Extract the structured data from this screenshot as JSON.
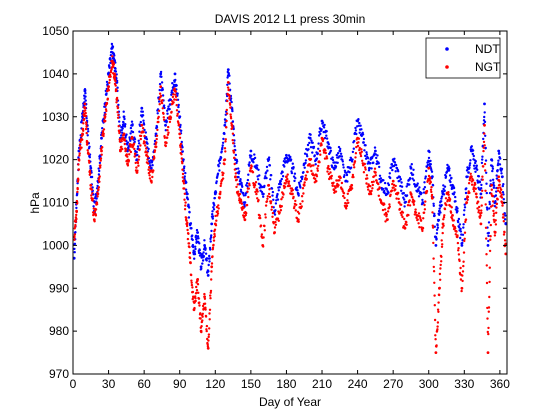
{
  "chart_data": {
    "type": "scatter",
    "title": "DAVIS 2012 L1 press 30min",
    "xlabel": "Day of Year",
    "ylabel": "hPa",
    "xlim": [
      0,
      366
    ],
    "ylim": [
      970,
      1050
    ],
    "xticks": [
      0,
      30,
      60,
      90,
      120,
      150,
      180,
      210,
      240,
      270,
      300,
      330,
      360
    ],
    "yticks": [
      970,
      980,
      990,
      1000,
      1010,
      1020,
      1030,
      1040,
      1050
    ],
    "grid": false,
    "legend_position": "top-right",
    "series": [
      {
        "name": "NDT",
        "color": "#0000ff",
        "marker": "dot",
        "x": [
          1,
          3,
          5,
          8,
          10,
          12,
          15,
          18,
          21,
          24,
          27,
          30,
          33,
          35,
          37,
          40,
          43,
          46,
          50,
          54,
          58,
          62,
          66,
          70,
          74,
          78,
          82,
          86,
          90,
          93,
          96,
          99,
          102,
          105,
          108,
          111,
          114,
          117,
          120,
          124,
          128,
          131,
          134,
          137,
          141,
          145,
          150,
          155,
          160,
          165,
          170,
          175,
          180,
          185,
          190,
          195,
          200,
          205,
          210,
          215,
          220,
          225,
          230,
          235,
          240,
          245,
          250,
          255,
          260,
          265,
          270,
          275,
          280,
          285,
          290,
          295,
          300,
          303,
          306,
          309,
          312,
          316,
          320,
          324,
          328,
          332,
          336,
          340,
          344,
          347,
          350,
          353,
          356,
          359,
          362,
          365
        ],
        "values": [
          997,
          1010,
          1022,
          1030,
          1036,
          1028,
          1018,
          1008,
          1015,
          1025,
          1033,
          1040,
          1046,
          1043,
          1038,
          1025,
          1030,
          1022,
          1028,
          1020,
          1032,
          1024,
          1018,
          1026,
          1040,
          1028,
          1034,
          1040,
          1030,
          1020,
          1012,
          1005,
          998,
          1003,
          995,
          1000,
          993,
          1005,
          1012,
          1020,
          1028,
          1041,
          1032,
          1020,
          1015,
          1010,
          1022,
          1018,
          1012,
          1020,
          1008,
          1015,
          1021,
          1018,
          1012,
          1019,
          1025,
          1020,
          1029,
          1024,
          1018,
          1022,
          1015,
          1020,
          1029,
          1024,
          1018,
          1022,
          1015,
          1012,
          1020,
          1016,
          1010,
          1018,
          1014,
          1010,
          1022,
          1016,
          1000,
          1008,
          1012,
          1018,
          1014,
          1008,
          1000,
          1016,
          1022,
          1018,
          1012,
          1033,
          1000,
          1020,
          1010,
          1022,
          1016,
          1005
        ]
      },
      {
        "name": "NGT",
        "color": "#ff0000",
        "marker": "dot",
        "x": [
          1,
          3,
          5,
          8,
          10,
          12,
          15,
          18,
          21,
          24,
          27,
          30,
          33,
          35,
          37,
          40,
          43,
          46,
          50,
          54,
          58,
          62,
          66,
          70,
          74,
          78,
          82,
          86,
          90,
          93,
          96,
          99,
          102,
          105,
          108,
          111,
          114,
          117,
          120,
          124,
          128,
          131,
          134,
          137,
          141,
          145,
          150,
          155,
          160,
          165,
          170,
          175,
          180,
          185,
          190,
          195,
          200,
          205,
          210,
          215,
          220,
          225,
          230,
          235,
          240,
          245,
          250,
          255,
          260,
          265,
          270,
          275,
          280,
          285,
          290,
          295,
          300,
          303,
          306,
          309,
          312,
          316,
          320,
          324,
          328,
          332,
          336,
          340,
          344,
          347,
          350,
          353,
          356,
          359,
          362,
          365
        ],
        "values": [
          1002,
          1008,
          1020,
          1026,
          1033,
          1024,
          1014,
          1006,
          1012,
          1022,
          1030,
          1037,
          1043,
          1040,
          1034,
          1022,
          1026,
          1019,
          1025,
          1017,
          1028,
          1021,
          1015,
          1023,
          1037,
          1024,
          1030,
          1036,
          1026,
          1015,
          1005,
          996,
          985,
          992,
          980,
          988,
          976,
          995,
          1005,
          1012,
          1020,
          1038,
          1028,
          1016,
          1010,
          1006,
          1018,
          1013,
          1000,
          1014,
          1003,
          1009,
          1016,
          1012,
          1006,
          1014,
          1020,
          1015,
          1025,
          1018,
          1013,
          1016,
          1009,
          1014,
          1025,
          1019,
          1012,
          1017,
          1010,
          1006,
          1015,
          1010,
          1004,
          1012,
          1007,
          1004,
          1018,
          1011,
          975,
          990,
          1005,
          1012,
          1007,
          1002,
          990,
          1010,
          1016,
          1012,
          1005,
          1028,
          975,
          1014,
          1003,
          1016,
          1010,
          998
        ]
      }
    ]
  }
}
